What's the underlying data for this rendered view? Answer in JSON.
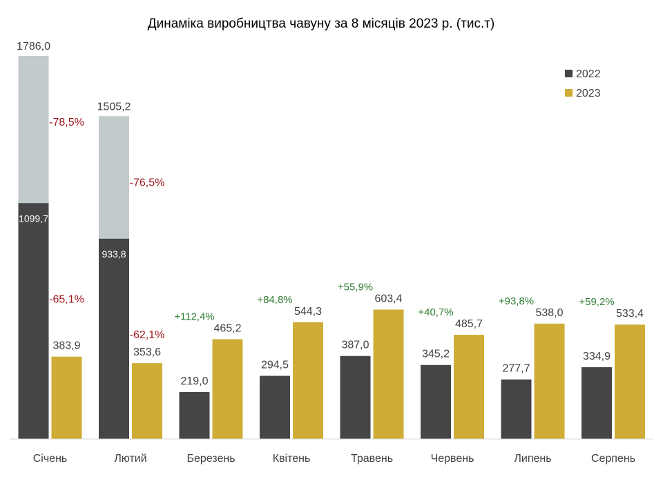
{
  "chart_data": {
    "type": "bar",
    "title": "Динаміка виробництва чавуну за 8 місяців 2023 р. (тис.т)",
    "xlabel": "",
    "ylabel": "",
    "ylim": [
      0,
      1786
    ],
    "grid": false,
    "legend_position": "top-right",
    "categories": [
      "Січень",
      "Лютий",
      "Березень",
      "Квітень",
      "Травень",
      "Червень",
      "Липень",
      "Серпень"
    ],
    "series": [
      {
        "name": "2022",
        "color": "#454548",
        "values": [
          1099.7,
          933.8,
          219.0,
          294.5,
          387.0,
          345.2,
          277.7,
          334.9
        ],
        "labels": [
          "1099,7",
          "933,8",
          "219,0",
          "294,5",
          "387,0",
          "345,2",
          "277,7",
          "334,9"
        ]
      },
      {
        "name": "2023",
        "color": "#cfac36",
        "values": [
          383.9,
          353.6,
          465.2,
          544.3,
          603.4,
          485.7,
          538.0,
          533.4
        ],
        "labels": [
          "383,9",
          "353,6",
          "465,2",
          "544,3",
          "603,4",
          "485,7",
          "538,0",
          "533,4"
        ]
      }
    ],
    "reference_bars": [
      {
        "category": "Січень",
        "value": 1786.0,
        "label": "1786,0",
        "color": "#c2cacb"
      },
      {
        "category": "Лютий",
        "value": 1505.2,
        "label": "1505,2",
        "color": "#c2cacb"
      }
    ],
    "change_labels": [
      {
        "category": "Січень",
        "text": "-78,5%",
        "kind": "negative",
        "anchor": "upper"
      },
      {
        "category": "Січень",
        "text": "-65,1%",
        "kind": "negative",
        "anchor": "lower"
      },
      {
        "category": "Лютий",
        "text": "-76,5%",
        "kind": "negative",
        "anchor": "upper"
      },
      {
        "category": "Лютий",
        "text": "-62,1%",
        "kind": "negative",
        "anchor": "lower"
      },
      {
        "category": "Березень",
        "text": "+112,4%",
        "kind": "positive",
        "anchor": "bar"
      },
      {
        "category": "Квітень",
        "text": "+84,8%",
        "kind": "positive",
        "anchor": "bar"
      },
      {
        "category": "Травень",
        "text": "+55,9%",
        "kind": "positive",
        "anchor": "bar"
      },
      {
        "category": "Червень",
        "text": "+40,7%",
        "kind": "positive",
        "anchor": "bar"
      },
      {
        "category": "Липень",
        "text": "+93,8%",
        "kind": "positive",
        "anchor": "bar"
      },
      {
        "category": "Серпень",
        "text": "+59,2%",
        "kind": "positive",
        "anchor": "bar"
      }
    ]
  }
}
